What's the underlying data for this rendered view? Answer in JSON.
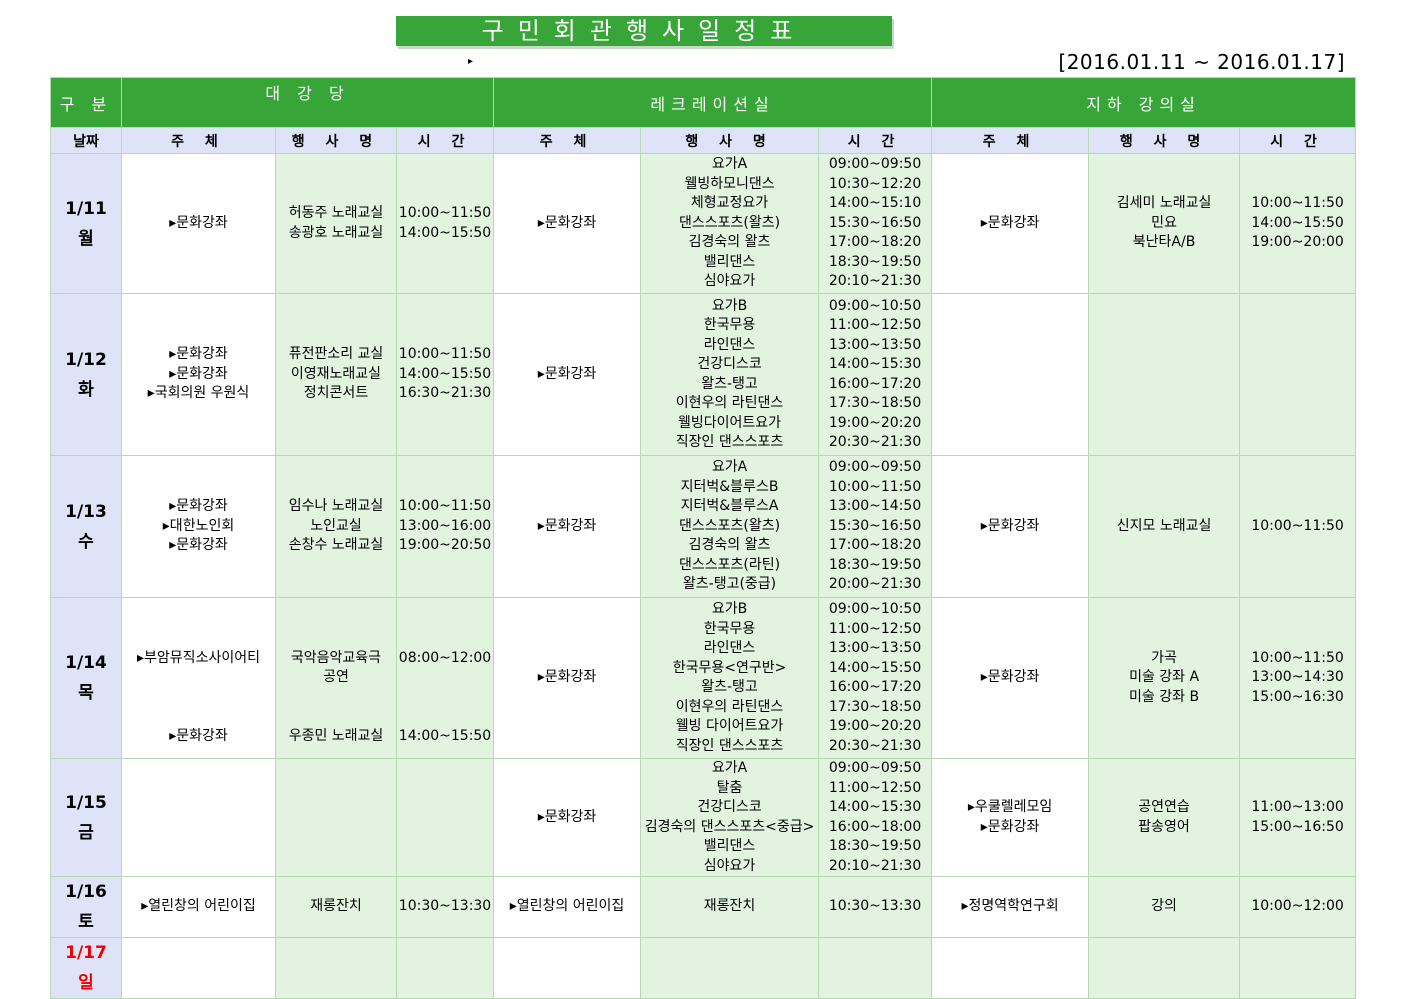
{
  "title": "구민회관행사일정표",
  "marker": "▸",
  "date_range": "[2016.01.11 ~ 2016.01.17]",
  "header": {
    "category": "구 분",
    "rooms": [
      "대 강 당",
      "레크레이션실",
      "지하 강의실"
    ],
    "date_col": "날짜",
    "sub_cols": [
      "주 체",
      "행 사 명",
      "시 간"
    ]
  },
  "colors": {
    "header_green": "#38a538",
    "date_bg": "#dfe3f7",
    "cell_green": "#e2f3e0",
    "sunday": "#ee0000"
  },
  "rows": [
    {
      "date": "1/11",
      "day": "월",
      "sunday": false,
      "cells": [
        "▸문화강좌",
        "허동주 노래교실\n송광호 노래교실",
        "10:00~11:50\n14:00~15:50",
        "▸문화강좌",
        "요가A\n웰빙하모니댄스\n체형교정요가\n댄스스포츠(왈츠)\n김경숙의 왈츠\n밸리댄스\n심야요가",
        "09:00~09:50\n10:30~12:20\n14:00~15:10\n15:30~16:50\n17:00~18:20\n18:30~19:50\n20:10~21:30",
        "▸문화강좌",
        "김세미 노래교실\n민요\n북난타A/B",
        "10:00~11:50\n14:00~15:50\n19:00~20:00"
      ]
    },
    {
      "date": "1/12",
      "day": "화",
      "sunday": false,
      "cells": [
        "▸문화강좌\n▸문화강좌\n▸국회의원 우원식",
        "퓨전판소리 교실\n이영재노래교실\n정치콘서트",
        "10:00~11:50\n14:00~15:50\n16:30~21:30",
        "▸문화강좌",
        "요가B\n한국무용\n라인댄스\n건강디스코\n왈츠-탱고\n이현우의 라틴댄스\n웰빙다이어트요가\n직장인 댄스스포츠",
        "09:00~10:50\n11:00~12:50\n13:00~13:50\n14:00~15:30\n16:00~17:20\n17:30~18:50\n19:00~20:20\n20:30~21:30",
        "",
        "",
        ""
      ]
    },
    {
      "date": "1/13",
      "day": "수",
      "sunday": false,
      "cells": [
        "▸문화강좌\n▸대한노인회\n▸문화강좌",
        "임수나 노래교실\n노인교실\n손창수 노래교실",
        "10:00~11:50\n13:00~16:00\n19:00~20:50",
        "▸문화강좌",
        "요가A\n지터벅&블루스B\n지터벅&블루스A\n댄스스포츠(왈츠)\n김경숙의 왈츠\n댄스스포츠(라틴)\n왈츠-탱고(중급)",
        "09:00~09:50\n10:00~11:50\n13:00~14:50\n15:30~16:50\n17:00~18:20\n18:30~19:50\n20:00~21:30",
        "▸문화강좌",
        "신지모 노래교실",
        "10:00~11:50"
      ]
    },
    {
      "date": "1/14",
      "day": "목",
      "sunday": false,
      "cells": [
        "\n\n▸부암뮤직소사이어티\n\n\n\n▸문화강좌\n",
        "\n\n국악음악교육극\n공연\n\n\n우종민 노래교실\n",
        "\n\n08:00~12:00\n\n\n\n14:00~15:50\n",
        "▸문화강좌",
        "요가B\n한국무용\n라인댄스\n한국무용<연구반>\n왈츠-탱고\n이현우의 라틴댄스\n웰빙 다이어트요가\n직장인 댄스스포츠",
        "09:00~10:50\n11:00~12:50\n13:00~13:50\n14:00~15:50\n16:00~17:20\n17:30~18:50\n19:00~20:20\n20:30~21:30",
        "▸문화강좌",
        "가곡\n미술 강좌 A\n미술 강좌 B",
        "10:00~11:50\n13:00~14:30\n15:00~16:30"
      ]
    },
    {
      "date": "1/15",
      "day": "금",
      "sunday": false,
      "cells": [
        "",
        "",
        "",
        "▸문화강좌",
        "요가A\n탈춤\n건강디스코\n김경숙의 댄스스포츠<중급>\n밸리댄스\n심야요가",
        "09:00~09:50\n11:00~12:50\n14:00~15:30\n16:00~18:00\n18:30~19:50\n20:10~21:30",
        "▸우쿨렐레모임\n▸문화강좌",
        "공연연습\n팝송영어",
        "11:00~13:00\n15:00~16:50"
      ]
    },
    {
      "date": "1/16",
      "day": "토",
      "sunday": false,
      "cells": [
        "▸열린창의 어린이집",
        "재롱잔치",
        "10:30~13:30",
        "▸열린창의 어린이집",
        "재롱잔치",
        "10:30~13:30",
        "▸정명역학연구회",
        "강의",
        "10:00~12:00"
      ]
    },
    {
      "date": "1/17",
      "day": "일",
      "sunday": true,
      "cells": [
        "",
        "",
        "",
        "",
        "",
        "",
        "",
        "",
        ""
      ]
    }
  ]
}
